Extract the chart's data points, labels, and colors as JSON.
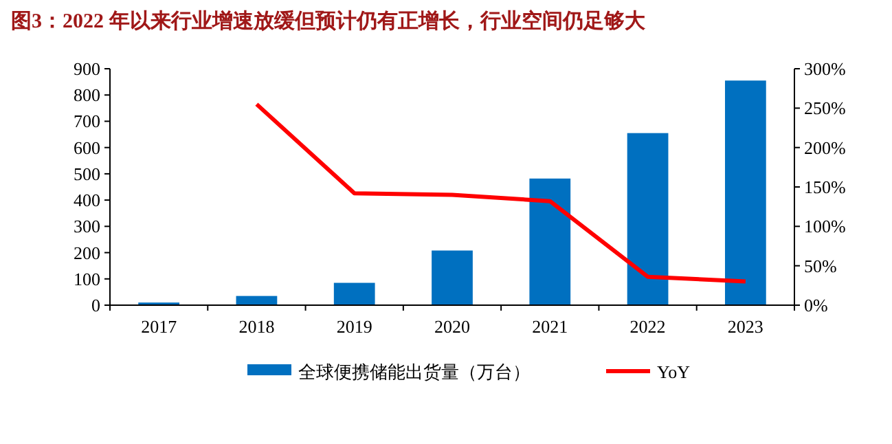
{
  "chart_data": {
    "type": "bar",
    "title": "图3：2022 年以来行业增速放缓但预计仍有正增长，行业空间仍足够大",
    "categories": [
      "2017",
      "2018",
      "2019",
      "2020",
      "2021",
      "2022",
      "2023"
    ],
    "series": [
      {
        "name": "全球便携储能出货量（万台）",
        "color": "#0070c0",
        "values": [
          10,
          35,
          85,
          208,
          482,
          655,
          855
        ]
      },
      {
        "name": "YoY",
        "type": "line",
        "axis": "y2",
        "color": "#ff0000",
        "values": [
          null,
          255,
          142,
          140,
          132,
          36,
          30
        ]
      }
    ],
    "ylim": [
      0,
      900
    ],
    "yticks": [
      0,
      100,
      200,
      300,
      400,
      500,
      600,
      700,
      800,
      900
    ],
    "y2lim": [
      0,
      300
    ],
    "y2ticks": [
      {
        "value": 0,
        "label": "0%"
      },
      {
        "value": 50,
        "label": "50%"
      },
      {
        "value": 100,
        "label": "100%"
      },
      {
        "value": 150,
        "label": "150%"
      },
      {
        "value": 200,
        "label": "200%"
      },
      {
        "value": 250,
        "label": "250%"
      },
      {
        "value": 300,
        "label": "300%"
      }
    ],
    "legend": "bottom",
    "marker": "none",
    "line_style": "solid"
  }
}
